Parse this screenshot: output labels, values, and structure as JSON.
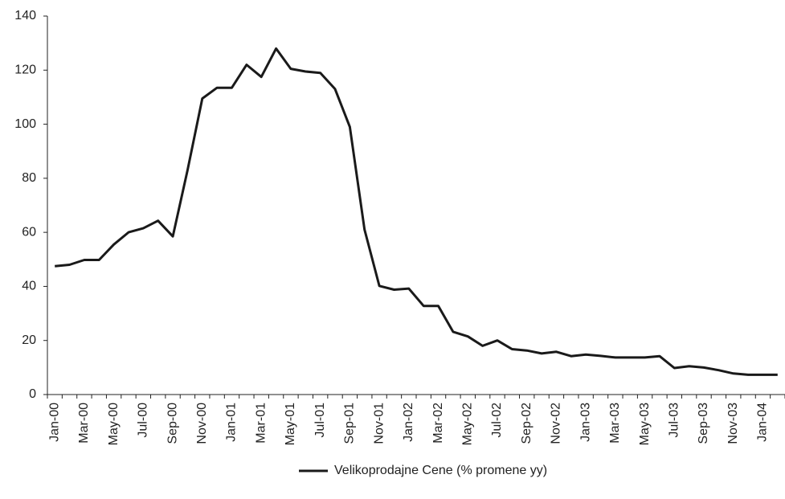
{
  "chart_data": {
    "type": "line",
    "categories": [
      "Jan-00",
      null,
      "Mar-00",
      null,
      "May-00",
      null,
      "Jul-00",
      null,
      "Sep-00",
      null,
      "Nov-00",
      null,
      "Jan-01",
      null,
      "Mar-01",
      null,
      "May-01",
      null,
      "Jul-01",
      null,
      "Sep-01",
      null,
      "Nov-01",
      null,
      "Jan-02",
      null,
      "Mar-02",
      null,
      "May-02",
      null,
      "Jul-02",
      null,
      "Sep-02",
      null,
      "Nov-02",
      null,
      "Jan-03",
      null,
      "Mar-03",
      null,
      "May-03",
      null,
      "Jul-03",
      null,
      "Sep-03",
      null,
      "Nov-03",
      null,
      "Jan-04",
      null
    ],
    "series": [
      {
        "name": "Velikoprodajne Cene (% promene yy)",
        "color": "#1a1a1a",
        "values": [
          47.5,
          48,
          49.8,
          49.8,
          55.5,
          60,
          61.5,
          64.3,
          58.5,
          83,
          109.5,
          113.5,
          113.5,
          122,
          117.5,
          128,
          120.5,
          119.5,
          119,
          113,
          99,
          61,
          40.2,
          38.8,
          39.2,
          32.8,
          32.8,
          23.2,
          21.5,
          18,
          20,
          16.8,
          16.3,
          15.2,
          15.8,
          14.2,
          14.8,
          14.3,
          13.7,
          13.7,
          13.7,
          14.2,
          9.8,
          10.5,
          10,
          9,
          7.8,
          7.3,
          7.3,
          7.3
        ]
      }
    ],
    "ylim": [
      0,
      140
    ],
    "yticks": [
      0,
      20,
      40,
      60,
      80,
      100,
      120,
      140
    ],
    "grid": false,
    "legend": "bottom"
  }
}
